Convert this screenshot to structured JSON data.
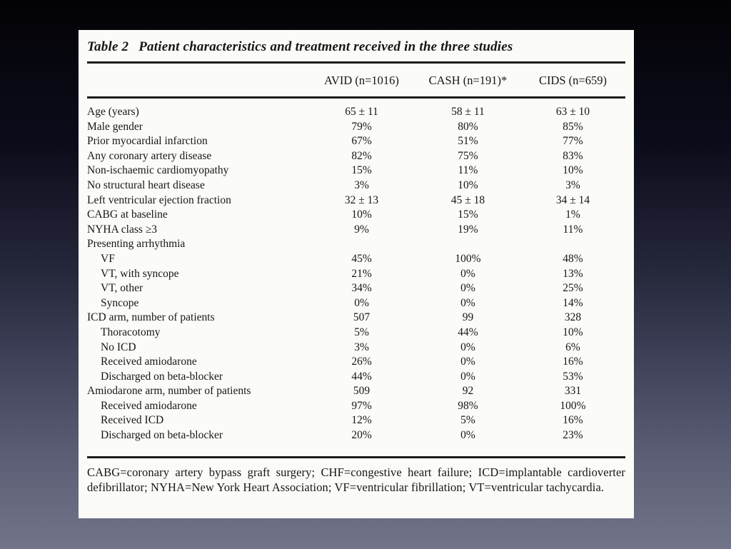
{
  "colors": {
    "background_top": "#030306",
    "background_bottom": "#72748a",
    "card_background": "#fbfbf8",
    "text": "#161616",
    "rule": "#1c1c1c"
  },
  "table": {
    "title_label": "Table 2",
    "title_text": "Patient characteristics and treatment received in the three studies",
    "columns": [
      "AVID (n=1016)",
      "CASH (n=191)*",
      "CIDS (n=659)"
    ],
    "rows": [
      {
        "label": "Age (years)",
        "indent": 0,
        "values": [
          "65 ± 11",
          "58 ± 11",
          "63 ± 10"
        ]
      },
      {
        "label": "Male gender",
        "indent": 0,
        "values": [
          "79%",
          "80%",
          "85%"
        ]
      },
      {
        "label": "Prior myocardial infarction",
        "indent": 0,
        "values": [
          "67%",
          "51%",
          "77%"
        ]
      },
      {
        "label": "Any coronary artery disease",
        "indent": 0,
        "values": [
          "82%",
          "75%",
          "83%"
        ]
      },
      {
        "label": "Non-ischaemic cardiomyopathy",
        "indent": 0,
        "values": [
          "15%",
          "11%",
          "10%"
        ]
      },
      {
        "label": "No structural heart disease",
        "indent": 0,
        "values": [
          "3%",
          "10%",
          "3%"
        ]
      },
      {
        "label": "Left ventricular ejection fraction",
        "indent": 0,
        "values": [
          "32 ± 13",
          "45 ± 18",
          "34 ± 14"
        ]
      },
      {
        "label": "CABG at baseline",
        "indent": 0,
        "values": [
          "10%",
          "15%",
          "1%"
        ]
      },
      {
        "label": "NYHA class ≥3",
        "indent": 0,
        "values": [
          "9%",
          "19%",
          "11%"
        ]
      },
      {
        "label": "Presenting arrhythmia",
        "indent": 0,
        "values": [
          "",
          "",
          ""
        ]
      },
      {
        "label": "VF",
        "indent": 1,
        "values": [
          "45%",
          "100%",
          "48%"
        ]
      },
      {
        "label": "VT, with syncope",
        "indent": 1,
        "values": [
          "21%",
          "0%",
          "13%"
        ]
      },
      {
        "label": "VT, other",
        "indent": 1,
        "values": [
          "34%",
          "0%",
          "25%"
        ]
      },
      {
        "label": "Syncope",
        "indent": 1,
        "values": [
          "0%",
          "0%",
          "14%"
        ]
      },
      {
        "label": "ICD arm, number of patients",
        "indent": 0,
        "values": [
          "507",
          "99",
          "328"
        ]
      },
      {
        "label": "Thoracotomy",
        "indent": 1,
        "values": [
          "5%",
          "44%",
          "10%"
        ]
      },
      {
        "label": "No ICD",
        "indent": 1,
        "values": [
          "3%",
          "0%",
          "6%"
        ]
      },
      {
        "label": "Received amiodarone",
        "indent": 1,
        "values": [
          "26%",
          "0%",
          "16%"
        ]
      },
      {
        "label": "Discharged on beta-blocker",
        "indent": 1,
        "values": [
          "44%",
          "0%",
          "53%"
        ]
      },
      {
        "label": "Amiodarone arm, number of patients",
        "indent": 0,
        "values": [
          "509",
          "92",
          "331"
        ]
      },
      {
        "label": "Received amiodarone",
        "indent": 1,
        "values": [
          "97%",
          "98%",
          "100%"
        ]
      },
      {
        "label": "Received ICD",
        "indent": 1,
        "values": [
          "12%",
          "5%",
          "16%"
        ]
      },
      {
        "label": "Discharged on beta-blocker",
        "indent": 1,
        "values": [
          "20%",
          "0%",
          "23%"
        ]
      }
    ],
    "footnote": "CABG=coronary artery bypass graft surgery; CHF=congestive heart failure; ICD=implantable cardioverter defibrillator; NYHA=New York Heart Association; VF=ventricular fibrillation; VT=ventricular tachycardia."
  }
}
